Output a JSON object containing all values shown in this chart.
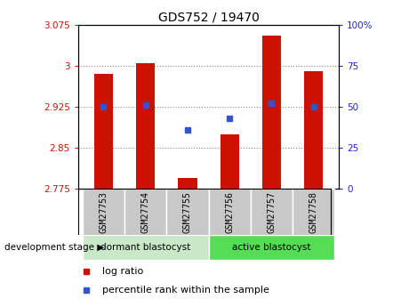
{
  "title": "GDS752 / 19470",
  "categories": [
    "GSM27753",
    "GSM27754",
    "GSM27755",
    "GSM27756",
    "GSM27757",
    "GSM27758"
  ],
  "bar_tops": [
    2.985,
    3.005,
    2.795,
    2.875,
    3.055,
    2.99
  ],
  "bar_base": 2.775,
  "blue_pct": [
    50,
    51,
    36,
    43,
    52,
    50
  ],
  "ylim": [
    2.775,
    3.075
  ],
  "yticks_left": [
    2.775,
    2.85,
    2.925,
    3.0,
    3.075
  ],
  "yticks_right_vals": [
    0,
    25,
    50,
    75,
    100
  ],
  "yticks_right_labels": [
    "0",
    "25",
    "50",
    "75",
    "100%"
  ],
  "bar_color": "#cc1100",
  "blue_color": "#3355cc",
  "group1_label": "dormant blastocyst",
  "group2_label": "active blastocyst",
  "group1_color": "#c8e8c8",
  "group2_color": "#55dd55",
  "dev_stage_label": "development stage",
  "legend1": "log ratio",
  "legend2": "percentile rank within the sample",
  "grid_color": "#888888",
  "bg_color": "#ffffff",
  "tick_color_left": "#cc1100",
  "tick_color_right": "#2222cc",
  "box_color": "#c8c8c8",
  "bar_width": 0.45
}
